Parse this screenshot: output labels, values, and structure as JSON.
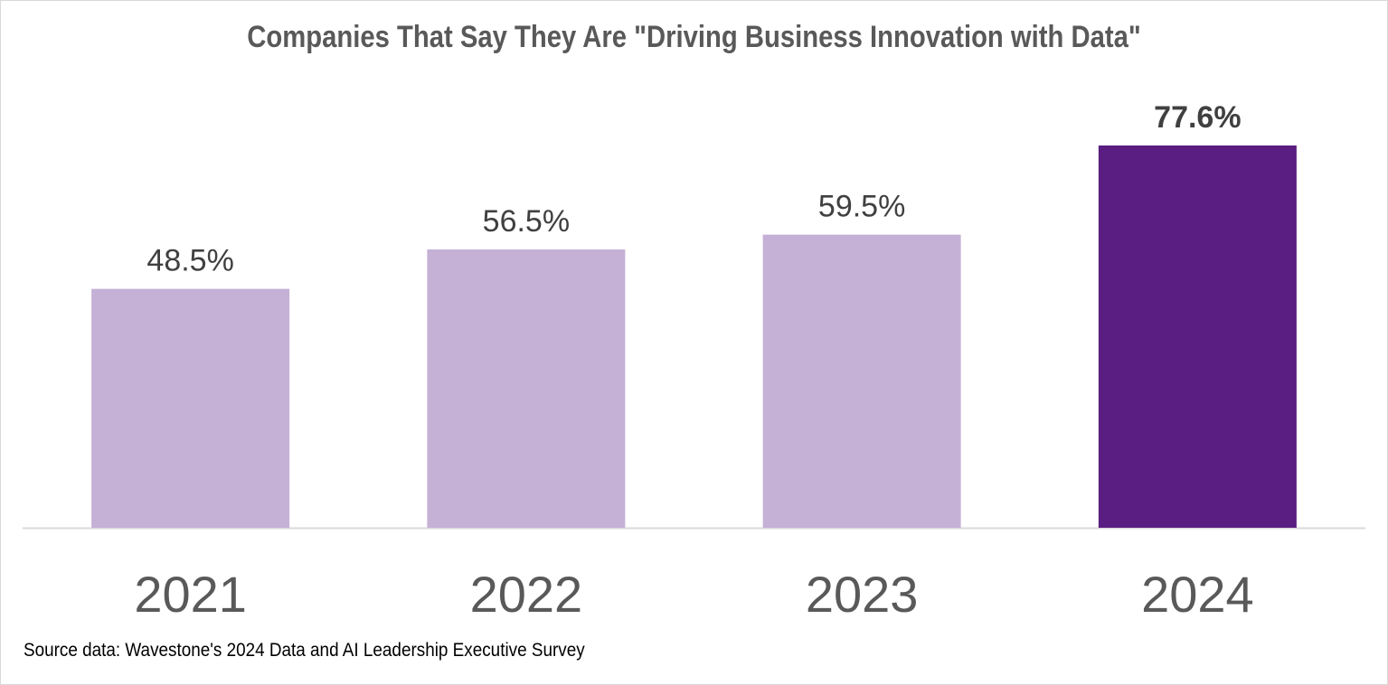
{
  "chart_data": {
    "type": "bar",
    "title": "Companies That Say They Are \"Driving Business Innovation with Data\"",
    "categories": [
      "2021",
      "2022",
      "2023",
      "2024"
    ],
    "values": [
      48.5,
      56.5,
      59.5,
      77.6
    ],
    "data_labels": [
      "48.5%",
      "56.5%",
      "59.5%",
      "77.6%"
    ],
    "highlight_index": 3,
    "colors": {
      "default": "#c5b1d6",
      "highlight": "#5a1e82"
    },
    "xlabel": "",
    "ylabel": "",
    "ylim": [
      0,
      77.6
    ],
    "grid": false,
    "legend": "none",
    "source": "Source data: Wavestone's 2024 Data and AI Leadership Executive Survey"
  }
}
